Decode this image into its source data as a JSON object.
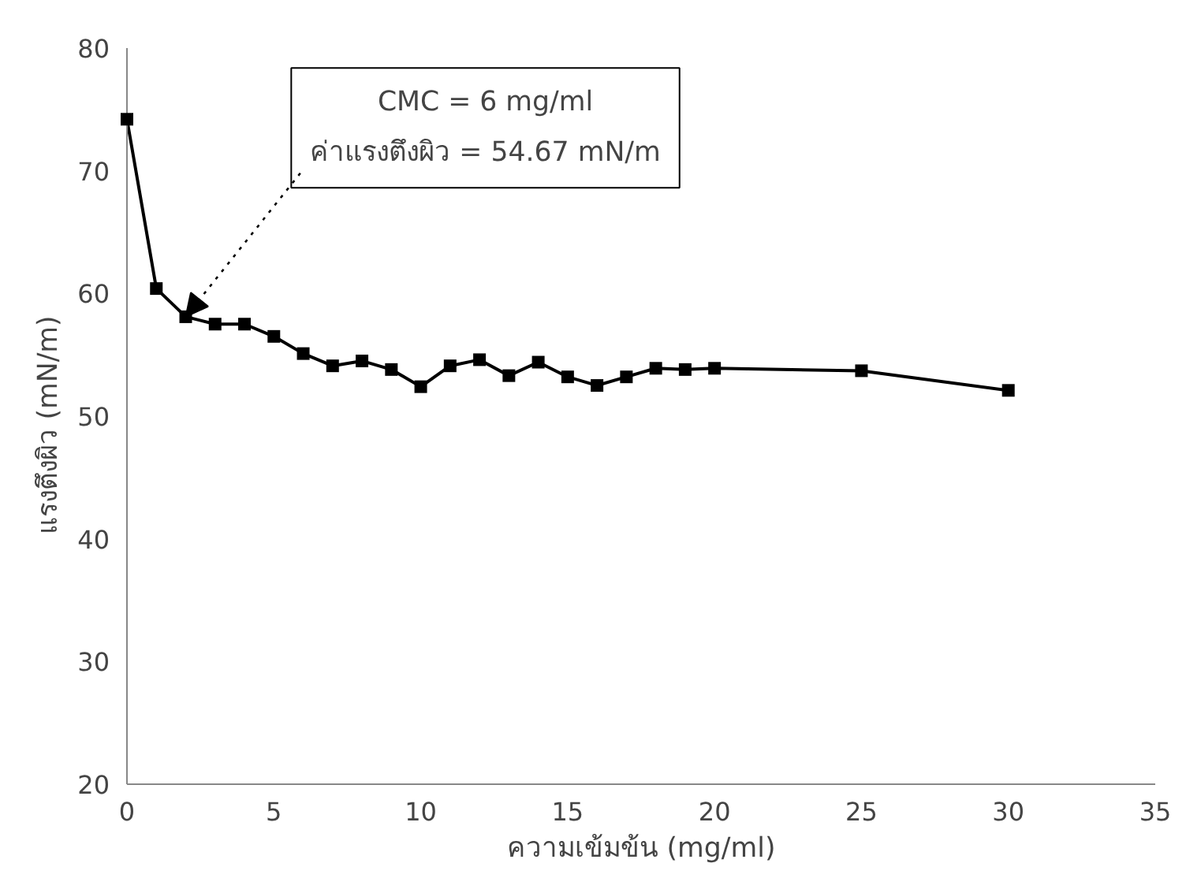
{
  "chart_data": {
    "type": "line",
    "xlabel": "ความเข้มข้น (mg/ml)",
    "ylabel": "แรงตึงผิว   (mN/m)",
    "x": [
      0,
      1,
      2,
      3,
      4,
      5,
      6,
      7,
      8,
      9,
      10,
      11,
      12,
      13,
      14,
      15,
      16,
      17,
      18,
      19,
      20,
      25,
      30
    ],
    "series": [
      {
        "color": "#000000",
        "values": [
          74.2,
          60.4,
          58.1,
          57.5,
          57.5,
          56.5,
          55.1,
          54.1,
          54.5,
          53.8,
          52.4,
          54.1,
          54.6,
          53.3,
          54.4,
          53.2,
          52.5,
          53.2,
          53.9,
          53.8,
          53.9,
          53.7,
          52.1
        ]
      }
    ],
    "xlim": [
      0,
      35
    ],
    "xticks": [
      0,
      5,
      10,
      15,
      20,
      25,
      30,
      35
    ],
    "ylim": [
      20,
      80
    ],
    "yticks": [
      20,
      30,
      40,
      50,
      60,
      70,
      80
    ],
    "grid": false,
    "marker": "square",
    "line_style": "solid",
    "annotations": [
      {
        "text": "CMC = 6 mg/ml\nค่าแรงตึงผิว = 54.67 mN/m",
        "x": 2,
        "y": 58.1
      }
    ]
  }
}
